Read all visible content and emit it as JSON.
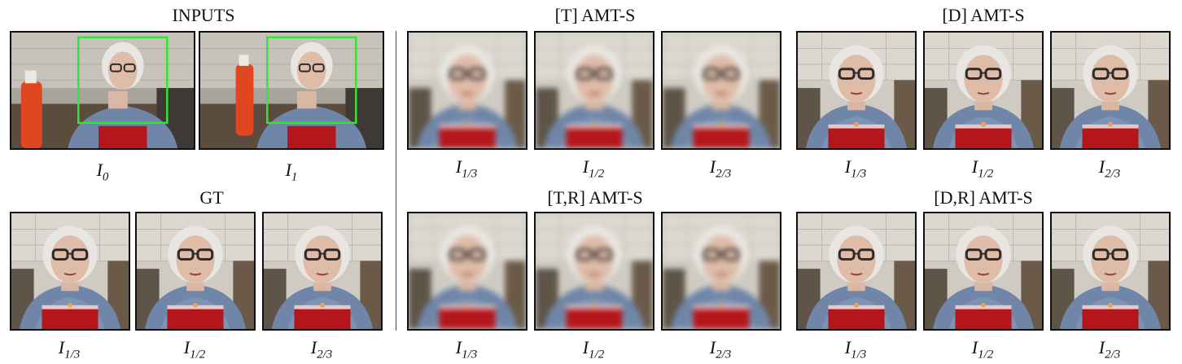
{
  "titles": {
    "inputs": "INPUTS",
    "gt": "GT",
    "t_amts": "[T] AMT-S",
    "d_amts": "[D] AMT-S",
    "tr_amts": "[T,R] AMT-S",
    "dr_amts": "[D,R] AMT-S"
  },
  "captions": {
    "i0": {
      "base": "I",
      "sub": "0"
    },
    "i1": {
      "base": "I",
      "sub": "1"
    },
    "third": {
      "base": "I",
      "sub": "1/3"
    },
    "half": {
      "base": "I",
      "sub": "1/2"
    },
    "twothirds": {
      "base": "I",
      "sub": "2/3"
    }
  },
  "colors": {
    "roi_box": "#33e633",
    "apron": "#b5161c",
    "background_wall": "#cfcbc3"
  }
}
